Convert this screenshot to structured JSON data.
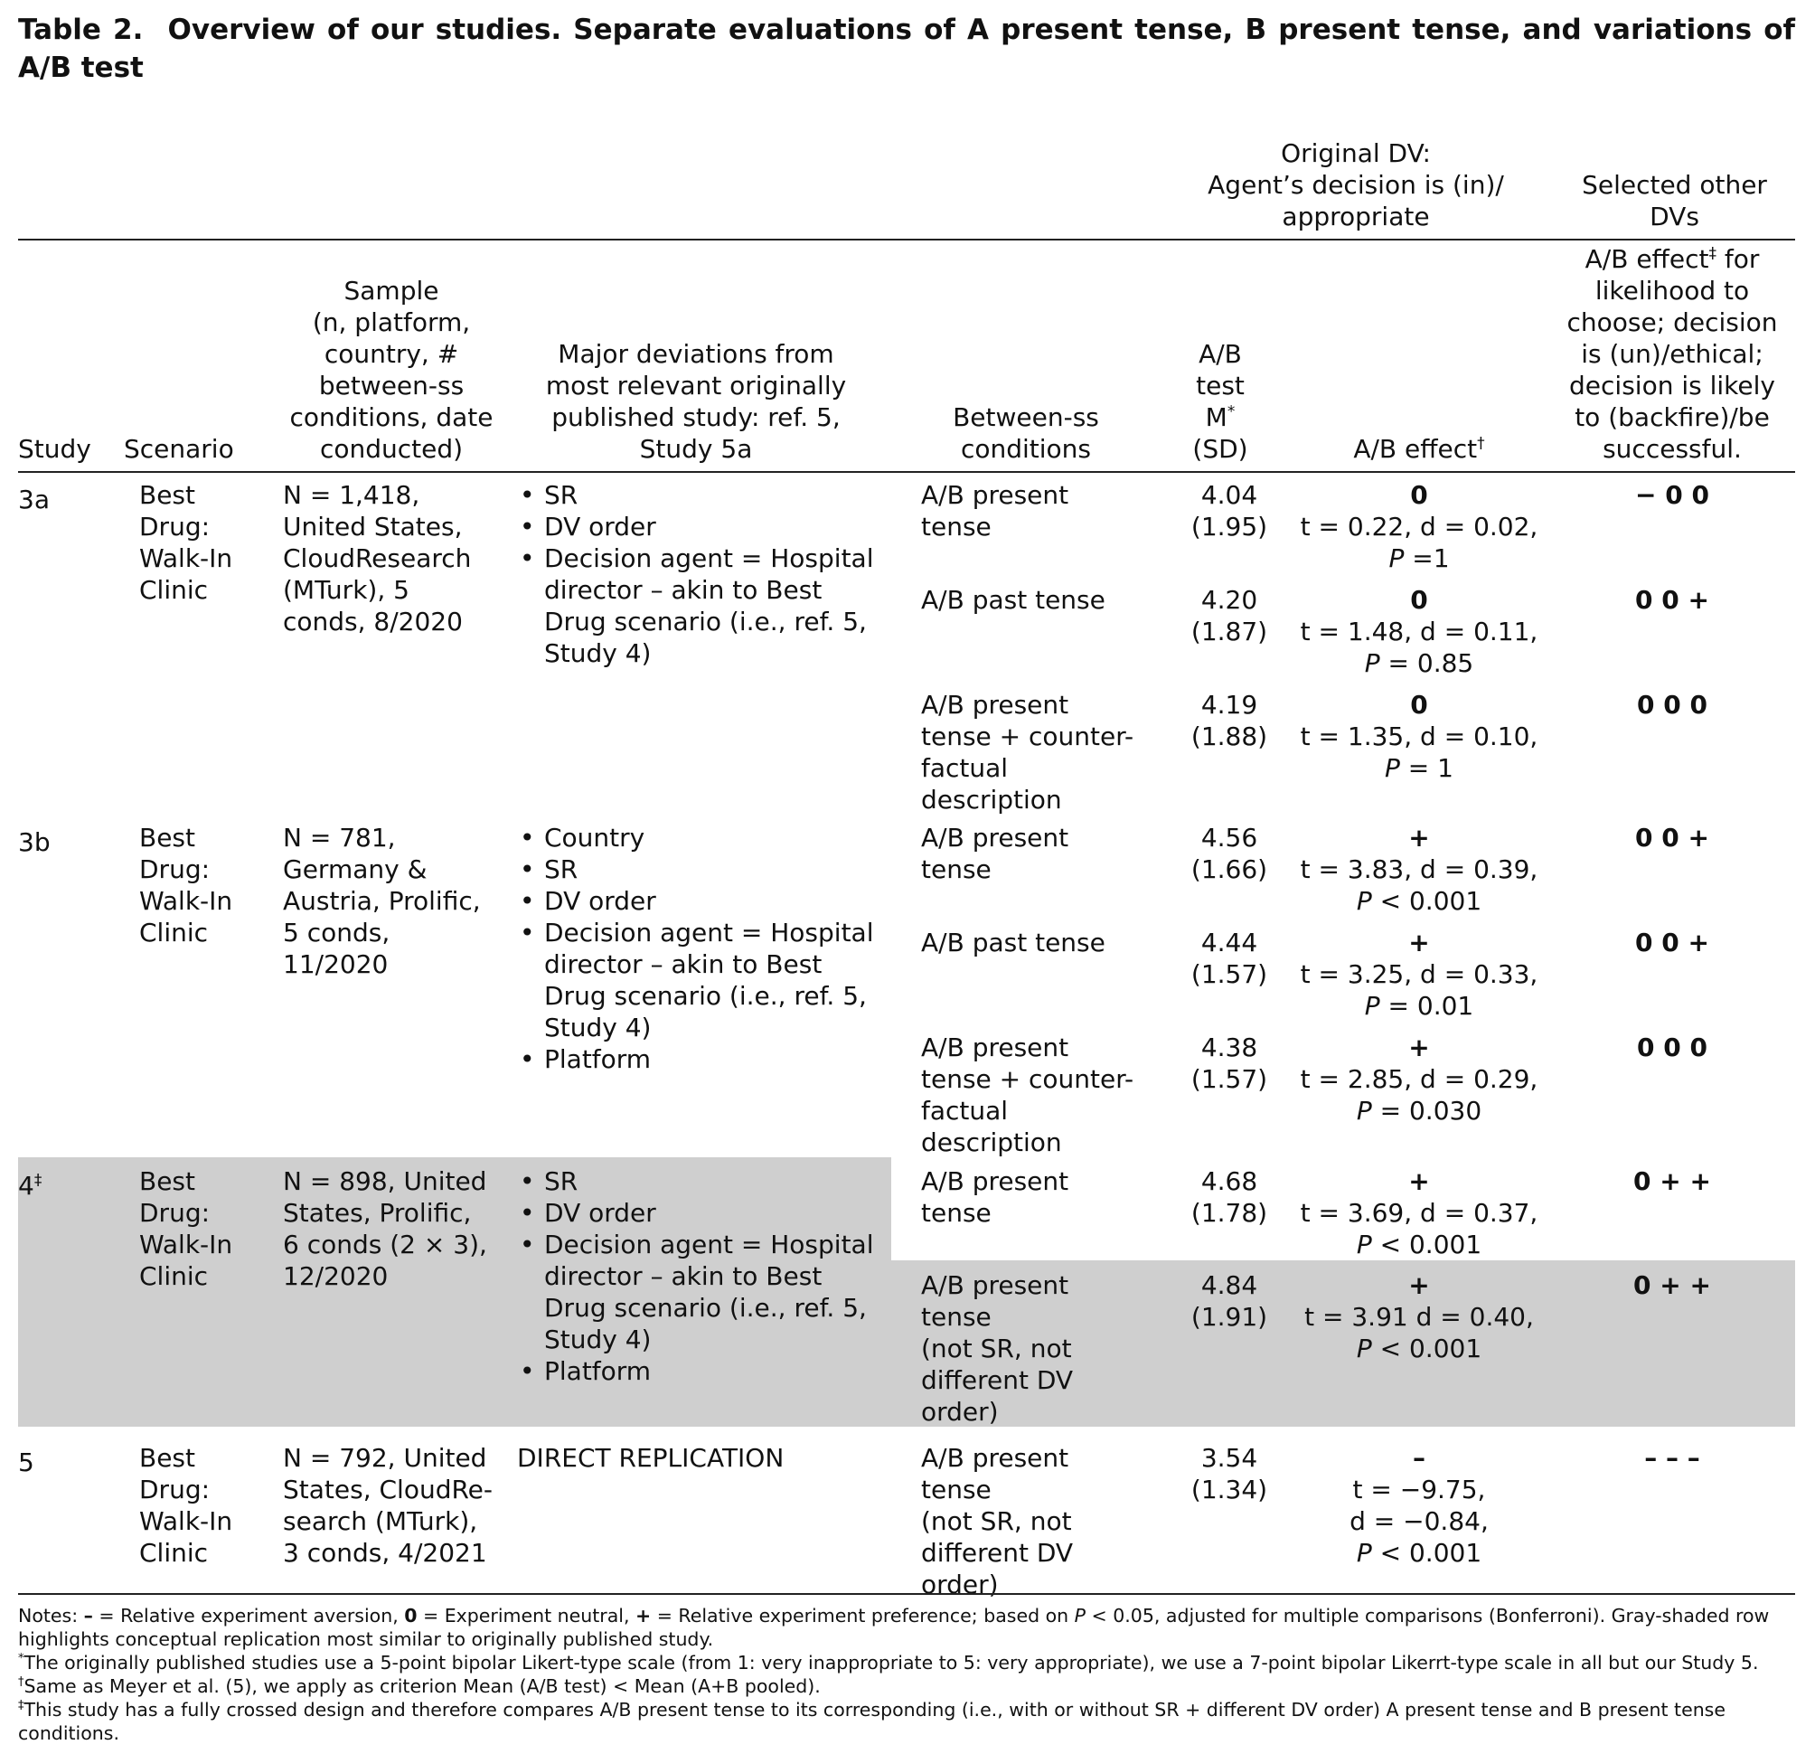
{
  "caption": {
    "label": "Table 2.",
    "text": "Overview of our studies. Separate evaluations of A present tense, B present tense, and variations of A/B test"
  },
  "group_headers": {
    "original_dv": [
      "Original DV:",
      "Agent’s decision is (in)/",
      "appropriate"
    ],
    "other_dvs": [
      "Selected other",
      "DVs"
    ]
  },
  "headers": {
    "study": "Study",
    "scenario": "Scenario",
    "sample": [
      "Sample",
      "(n, platform,",
      "country, #",
      "between-ss",
      "conditions, date",
      "conducted)"
    ],
    "deviations": [
      "Major deviations from",
      "most relevant originally",
      "published study: ref. 5,",
      "Study 5a"
    ],
    "conditions": [
      "Between-ss",
      "conditions"
    ],
    "mean": [
      "A/B",
      "test",
      "M",
      "(SD)"
    ],
    "mean_mark": "*",
    "effect": "A/B effect",
    "effect_mark": "†",
    "other_line1": "A/B effect",
    "other_mark": "‡",
    "other_line1_rest": " for",
    "other_rest": [
      "likelihood to",
      "choose; decision",
      "is (un)/ethical;",
      "decision is likely",
      "to (backfire)/be",
      "successful."
    ]
  },
  "studies": [
    {
      "study": "3a",
      "mark": "",
      "scenario": [
        "Best",
        "Drug:",
        "Walk-In",
        "Clinic"
      ],
      "sample": [
        "N = 1,418,",
        "United States,",
        "CloudResearch",
        "(MTurk), 5",
        "conds, 8/2020"
      ],
      "deviations": [
        [
          "SR"
        ],
        [
          "DV order"
        ],
        [
          "Decision agent = Hospital",
          "director – akin to Best",
          "Drug scenario (i.e., ref. 5,",
          "Study 4)"
        ]
      ],
      "rows": [
        {
          "condition": [
            "A/B present",
            "tense"
          ],
          "mean": "4.04",
          "sd": "(1.95)",
          "effect_symbol": "0",
          "stats": "t = 0.22, d = 0.02,",
          "p_label": "P",
          "p_value": " =1",
          "other": "− 0 0"
        },
        {
          "condition": [
            "A/B past tense"
          ],
          "mean": "4.20",
          "sd": "(1.87)",
          "effect_symbol": "0",
          "stats": "t = 1.48, d = 0.11,",
          "p_label": "P",
          "p_value": " = 0.85",
          "other": "0 0 +"
        },
        {
          "condition": [
            "A/B present",
            "tense + counter-",
            "factual",
            "description"
          ],
          "mean": "4.19",
          "sd": "(1.88)",
          "effect_symbol": "0",
          "stats": "t = 1.35, d = 0.10,",
          "p_label": "P",
          "p_value": " = 1",
          "other": "0 0 0"
        }
      ]
    },
    {
      "study": "3b",
      "mark": "",
      "scenario": [
        "Best",
        "Drug:",
        "Walk-In",
        "Clinic"
      ],
      "sample": [
        "N = 781,",
        "Germany &",
        "Austria, Prolific,",
        "5 conds,",
        "11/2020"
      ],
      "deviations": [
        [
          "Country"
        ],
        [
          "SR"
        ],
        [
          "DV order"
        ],
        [
          "Decision agent = Hospital",
          "director – akin to Best",
          "Drug scenario (i.e., ref. 5,",
          "Study 4)"
        ],
        [
          "Platform"
        ]
      ],
      "rows": [
        {
          "condition": [
            "A/B present",
            "tense"
          ],
          "mean": "4.56",
          "sd": "(1.66)",
          "effect_symbol": "+",
          "stats": "t = 3.83, d = 0.39,",
          "p_label": "P",
          "p_value": " < 0.001",
          "other": "0 0 +"
        },
        {
          "condition": [
            "A/B past tense"
          ],
          "mean": "4.44",
          "sd": "(1.57)",
          "effect_symbol": "+",
          "stats": "t = 3.25, d = 0.33,",
          "p_label": "P",
          "p_value": " = 0.01",
          "other": "0 0 +"
        },
        {
          "condition": [
            "A/B present",
            "tense + counter-",
            "factual",
            "description"
          ],
          "mean": "4.38",
          "sd": "(1.57)",
          "effect_symbol": "+",
          "stats": "t = 2.85, d = 0.29,",
          "p_label": "P",
          "p_value": " = 0.030",
          "other": "0 0 0"
        }
      ]
    },
    {
      "study": "4",
      "mark": "‡",
      "scenario": [
        "Best",
        "Drug:",
        "Walk-In",
        "Clinic"
      ],
      "sample": [
        "N = 898, United",
        "States, Prolific,",
        "6 conds (2 × 3),",
        "12/2020"
      ],
      "deviations": [
        [
          "SR"
        ],
        [
          "DV order"
        ],
        [
          "Decision agent = Hospital",
          "director – akin to Best",
          "Drug scenario (i.e., ref. 5,",
          "Study 4)"
        ],
        [
          "Platform"
        ]
      ],
      "rows": [
        {
          "condition": [
            "A/B present",
            "tense"
          ],
          "mean": "4.68",
          "sd": "(1.78)",
          "effect_symbol": "+",
          "stats": "t = 3.69, d = 0.37,",
          "p_label": "P",
          "p_value": " < 0.001",
          "other": "0 + +"
        },
        {
          "condition": [
            "A/B present",
            "tense",
            "(not SR, not",
            "different DV",
            "order)"
          ],
          "mean": "4.84",
          "sd": "(1.91)",
          "effect_symbol": "+",
          "stats": "t = 3.91 d = 0.40,",
          "p_label": "P",
          "p_value": " < 0.001",
          "other": "0 + +"
        }
      ]
    },
    {
      "study": "5",
      "mark": "",
      "scenario": [
        "Best",
        "Drug:",
        "Walk-In",
        "Clinic"
      ],
      "sample": [
        "N = 792, United",
        "States, CloudRe-",
        "search (MTurk),",
        "3 conds, 4/2021"
      ],
      "direct": "DIRECT REPLICATION",
      "rows": [
        {
          "condition": [
            "A/B present",
            "tense",
            "(not SR, not",
            "different DV",
            "order)"
          ],
          "mean": "3.54",
          "sd": "(1.34)",
          "effect_symbol": "–",
          "stats_lines": [
            "t = −9.75,",
            "d = −0.84,"
          ],
          "p_label": "P",
          "p_value": " < 0.001",
          "other": "– – –"
        }
      ]
    }
  ],
  "notes": {
    "n1_parts": [
      "Notes: ",
      "–",
      " = Relative experiment aversion, ",
      "0",
      " = Experiment neutral, ",
      "+",
      " = Relative experiment preference; based on ",
      "P",
      " < 0.05, adjusted for multiple comparisons (Bonferroni). Gray-shaded row highlights conceptual replication most similar to originally published study."
    ],
    "n2_mark": "*",
    "n2": "The originally published studies use a 5-point bipolar Likert-type scale (from 1: very inappropriate to 5: very appropriate), we use a 7-point bipolar Likerrt-type scale in all but our Study 5.",
    "n3_mark": "†",
    "n3": "Same as Meyer et al. (5), we apply as criterion Mean (A/B test) < Mean (A+B pooled).",
    "n4_mark": "‡",
    "n4": "This study has a fully crossed design and therefore compares A/B present tense to its corresponding (i.e., with or without SR + different DV order) A present tense and B present tense conditions."
  }
}
